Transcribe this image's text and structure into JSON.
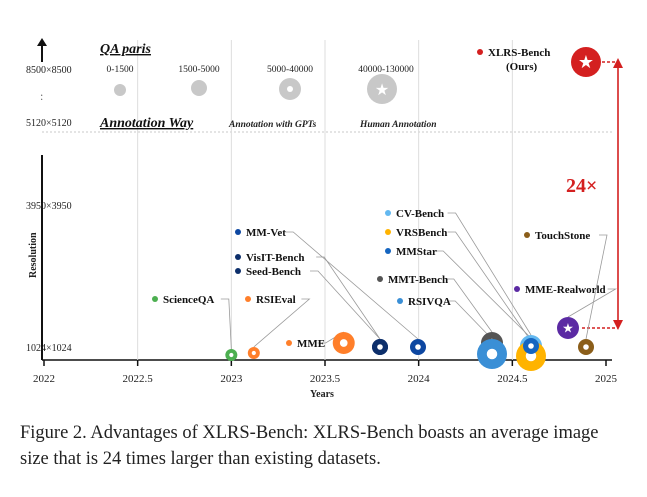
{
  "chart_data": {
    "type": "scatter",
    "xlabel": "Years",
    "ylabel": "Resolution",
    "x_ticks": [
      "2022",
      "2022.5",
      "2023",
      "2023.5",
      "2024",
      "2024.5",
      "2025"
    ],
    "y_ticks": [
      "1024×1024",
      "3950×3950",
      "5120×5120",
      "8500×8500"
    ],
    "xlim": [
      2022,
      2025
    ],
    "legend": {
      "qa_title": "QA paris",
      "qa_ranges": [
        "0-1500",
        "1500-5000",
        "5000-40000",
        "40000-130000"
      ],
      "annotation_title": "Annotation Way",
      "annotation_gpt": "Annotation with GPTs",
      "annotation_human": "Human Annotation"
    },
    "ratio_label": "24×",
    "points": [
      {
        "name": "ScienceQA",
        "x": 2023.0,
        "color": "#4caf50",
        "size": 1,
        "human": false
      },
      {
        "name": "RSIEval",
        "x": 2023.12,
        "color": "#ff7f2a",
        "size": 1,
        "human": false
      },
      {
        "name": "MME",
        "x": 2023.6,
        "color": "#ff7f2a",
        "size": 3,
        "human": false
      },
      {
        "name": "Seed-Bench",
        "x": 2023.81,
        "color": "#0d2f6b",
        "size": 2,
        "human": false
      },
      {
        "name": "VisIT-Bench",
        "x": 2023.81,
        "color": "#0d2f6b",
        "size": 2,
        "human": false
      },
      {
        "name": "MM-Vet",
        "x": 2024.0,
        "color": "#0d47a1",
        "size": 2,
        "human": false
      },
      {
        "name": "MMT-Bench",
        "x": 2024.4,
        "color": "#555555",
        "size": 3,
        "human": true
      },
      {
        "name": "RSIVQA",
        "x": 2024.4,
        "color": "#3a8fd6",
        "size": 4,
        "human": false
      },
      {
        "name": "CV-Bench",
        "x": 2024.6,
        "color": "#63b8f0",
        "size": 3,
        "human": false
      },
      {
        "name": "VRSBench",
        "x": 2024.6,
        "color": "#ffb300",
        "size": 4,
        "human": false
      },
      {
        "name": "MMStar",
        "x": 2024.6,
        "color": "#1565c0",
        "size": 2,
        "human": false
      },
      {
        "name": "MME-Realworld",
        "x": 2024.82,
        "color": "#5b2aa3",
        "size": 3,
        "human": true
      },
      {
        "name": "TouchStone",
        "x": 2024.95,
        "color": "#8b5e1a",
        "size": 2,
        "human": false
      },
      {
        "name": "XLRS-Bench\n(Ours)",
        "x": 2024.95,
        "color": "#d42020",
        "size": 4,
        "human": true
      }
    ]
  },
  "caption": "Figure 2.  Advantages of XLRS-Bench: XLRS-Bench boasts an average image size that is 24 times larger than existing datasets."
}
